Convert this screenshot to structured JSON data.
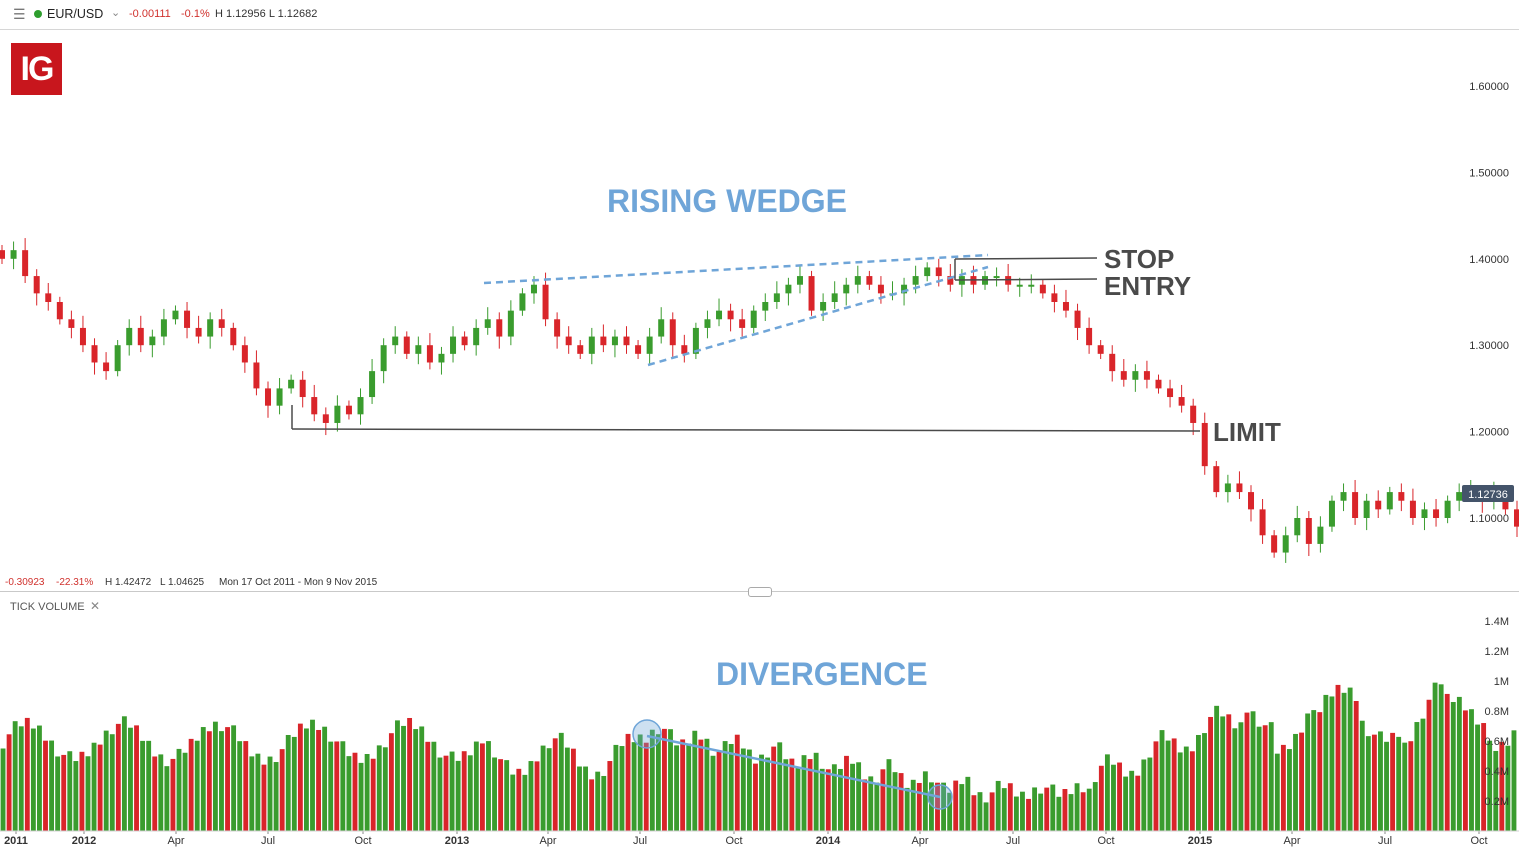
{
  "header": {
    "symbol": "EUR/USD",
    "change": "-0.00111",
    "change_pct": "-0.1%",
    "high_low": "H 1.12956  L 1.12682"
  },
  "logo_text": "IG",
  "period_stats": {
    "change": "-0.30923",
    "change_pct": "-22.31%",
    "high": "H 1.42472",
    "low": "L 1.04625",
    "range": "Mon 17 Oct 2011 - Mon 9 Nov 2015"
  },
  "volume_panel_label": "TICK VOLUME",
  "colors": {
    "up": "#3a9c2e",
    "down": "#d9252a",
    "annotation_blue": "#6fa5d8",
    "annotation_grey": "#4a4a4a"
  },
  "chart_data": [
    {
      "type": "candlestick",
      "title": "",
      "annotations": [
        "RISING WEDGE",
        "STOP",
        "ENTRY",
        "LIMIT"
      ],
      "price_ticks": [
        "1.60000",
        "1.50000",
        "1.40000",
        "1.30000",
        "1.20000",
        "1.10000"
      ],
      "last_price": "1.12736",
      "levels": {
        "stop": 1.401,
        "entry": 1.376,
        "limit": 1.2
      },
      "ylim": [
        1.04,
        1.66
      ],
      "series_closes": [
        1.4,
        1.41,
        1.38,
        1.36,
        1.35,
        1.33,
        1.32,
        1.3,
        1.28,
        1.27,
        1.3,
        1.32,
        1.3,
        1.31,
        1.33,
        1.34,
        1.32,
        1.31,
        1.33,
        1.32,
        1.3,
        1.28,
        1.25,
        1.23,
        1.25,
        1.26,
        1.24,
        1.22,
        1.21,
        1.23,
        1.22,
        1.24,
        1.27,
        1.3,
        1.31,
        1.29,
        1.3,
        1.28,
        1.29,
        1.31,
        1.3,
        1.32,
        1.33,
        1.31,
        1.34,
        1.36,
        1.37,
        1.33,
        1.31,
        1.3,
        1.29,
        1.31,
        1.3,
        1.31,
        1.3,
        1.29,
        1.31,
        1.33,
        1.3,
        1.29,
        1.32,
        1.33,
        1.34,
        1.33,
        1.32,
        1.34,
        1.35,
        1.36,
        1.37,
        1.38,
        1.34,
        1.35,
        1.36,
        1.37,
        1.38,
        1.37,
        1.36,
        1.36,
        1.37,
        1.38,
        1.39,
        1.38,
        1.37,
        1.38,
        1.37,
        1.38,
        1.38,
        1.37,
        1.37,
        1.37,
        1.36,
        1.35,
        1.34,
        1.32,
        1.3,
        1.29,
        1.27,
        1.26,
        1.27,
        1.26,
        1.25,
        1.24,
        1.23,
        1.21,
        1.16,
        1.13,
        1.14,
        1.13,
        1.11,
        1.08,
        1.06,
        1.08,
        1.1,
        1.07,
        1.09,
        1.12,
        1.13,
        1.1,
        1.12,
        1.11,
        1.13,
        1.12,
        1.1,
        1.11,
        1.1,
        1.12,
        1.13,
        1.13,
        1.12,
        1.13,
        1.11,
        1.09
      ],
      "x_ticks": [
        "2011",
        "2012",
        "Apr",
        "Jul",
        "Oct",
        "2013",
        "Apr",
        "Jul",
        "Oct",
        "2014",
        "Apr",
        "Jul",
        "Oct",
        "2015",
        "Apr",
        "Jul",
        "Oct"
      ]
    },
    {
      "type": "bar",
      "title": "",
      "annotations": [
        "DIVERGENCE"
      ],
      "y_ticks": [
        "1.4M",
        "1.2M",
        "1M",
        "0.8M",
        "0.6M",
        "0.4M",
        "0.2M"
      ],
      "ylim": [
        0,
        1.4
      ]
    }
  ]
}
